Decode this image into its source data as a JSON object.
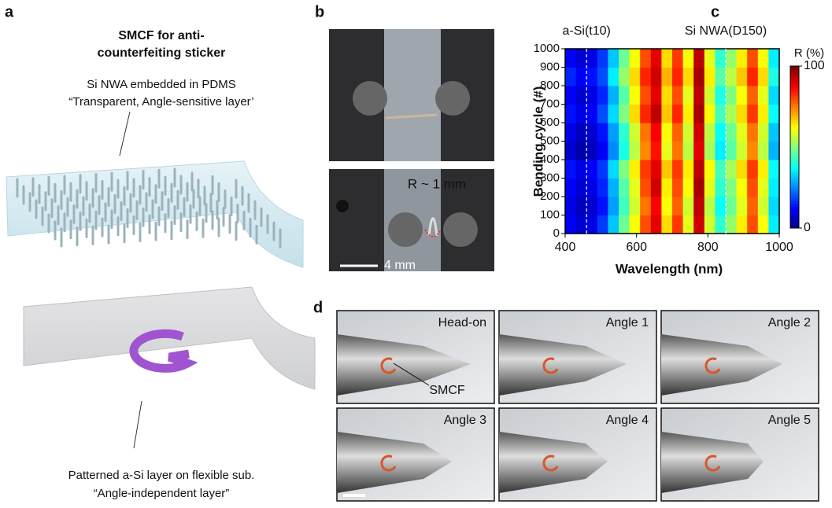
{
  "panel_a": {
    "label": "a",
    "title": [
      "SMCF for anti-",
      "counterfeiting sticker"
    ],
    "top_caption": [
      "Si NWA embedded in PDMS",
      "“Transparent, Angle-sensitive layer’"
    ],
    "bottom_caption": [
      "Patterned a-Si layer on flexible sub.",
      "“Angle-independent layer”"
    ]
  },
  "panel_b": {
    "label": "b",
    "annotation": "R ~ 1 mm",
    "scale_bar": "4 mm"
  },
  "chart_data": {
    "type": "heatmap",
    "label": "c",
    "x_label": "Wavelength (nm)",
    "y_label": "Bending cycle (#)",
    "xlim": [
      400,
      1000
    ],
    "xticks": [
      400,
      600,
      800,
      1000
    ],
    "ylim": [
      0,
      1000
    ],
    "yticks": [
      0,
      100,
      200,
      300,
      400,
      500,
      600,
      700,
      800,
      900,
      1000
    ],
    "x_bins": [
      400,
      430,
      460,
      490,
      520,
      550,
      580,
      610,
      640,
      670,
      700,
      730,
      760,
      790,
      820,
      850,
      880,
      910,
      940,
      970,
      1000
    ],
    "y_bins": [
      0,
      100,
      200,
      300,
      400,
      500,
      600,
      700,
      800,
      900,
      1000
    ],
    "z": [
      [
        12,
        8,
        10,
        18,
        32,
        48,
        62,
        80,
        90,
        66,
        82,
        60,
        92,
        58,
        42,
        52,
        64,
        80,
        62,
        36
      ],
      [
        10,
        6,
        8,
        14,
        28,
        44,
        58,
        76,
        88,
        62,
        78,
        58,
        94,
        56,
        38,
        48,
        60,
        78,
        58,
        34
      ],
      [
        12,
        8,
        10,
        16,
        30,
        46,
        60,
        80,
        92,
        64,
        80,
        62,
        96,
        60,
        42,
        50,
        62,
        80,
        60,
        36
      ],
      [
        14,
        10,
        12,
        18,
        34,
        50,
        64,
        82,
        90,
        68,
        82,
        64,
        94,
        62,
        44,
        54,
        66,
        82,
        64,
        38
      ],
      [
        8,
        4,
        6,
        12,
        26,
        40,
        56,
        74,
        86,
        60,
        76,
        56,
        90,
        54,
        36,
        46,
        58,
        74,
        56,
        30
      ],
      [
        10,
        6,
        8,
        14,
        28,
        42,
        58,
        76,
        88,
        62,
        78,
        58,
        92,
        56,
        38,
        48,
        60,
        76,
        58,
        32
      ],
      [
        14,
        10,
        12,
        20,
        34,
        50,
        66,
        84,
        94,
        68,
        84,
        64,
        96,
        62,
        44,
        54,
        66,
        82,
        64,
        38
      ],
      [
        12,
        8,
        10,
        16,
        30,
        46,
        62,
        80,
        90,
        66,
        80,
        60,
        94,
        58,
        40,
        50,
        62,
        78,
        60,
        34
      ],
      [
        16,
        12,
        14,
        20,
        36,
        52,
        66,
        84,
        92,
        70,
        84,
        66,
        96,
        64,
        46,
        56,
        68,
        84,
        66,
        40
      ],
      [
        12,
        8,
        10,
        18,
        32,
        48,
        62,
        80,
        90,
        66,
        82,
        62,
        94,
        60,
        42,
        52,
        64,
        80,
        62,
        36
      ]
    ],
    "colormap": "jet",
    "clim": [
      0,
      100
    ],
    "colorbar_label": "R (%)",
    "colorbar_ticks": [
      0,
      100
    ],
    "annotations": [
      {
        "x": 460,
        "label": "a-Si(t10)"
      },
      {
        "x": 850,
        "label": "Si NWA(D150)"
      }
    ]
  },
  "panel_d": {
    "label": "d",
    "photos": [
      "Head-on",
      "Angle 1",
      "Angle 2",
      "Angle 3",
      "Angle 4",
      "Angle 5"
    ],
    "pointer": "SMCF"
  }
}
